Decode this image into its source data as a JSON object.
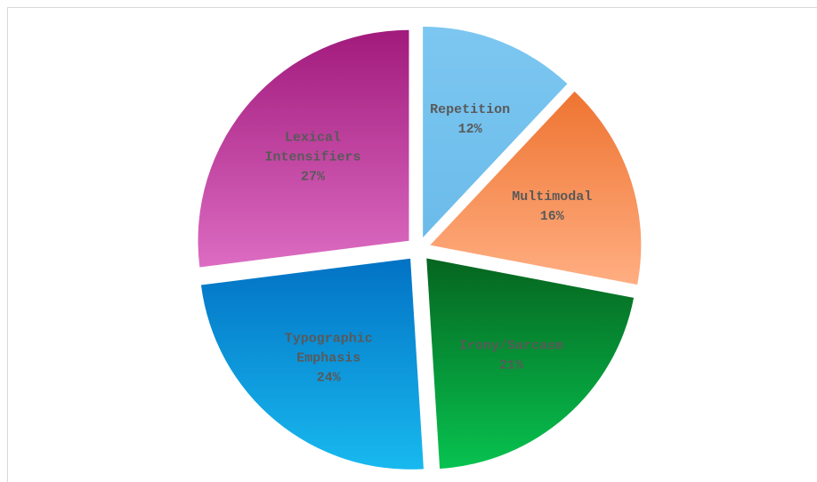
{
  "chart_data": {
    "type": "pie",
    "title": "",
    "slices": [
      {
        "name": "Repetition",
        "label_lines": [
          "Repetition"
        ],
        "value": 12,
        "value_label": "12%",
        "color_top": "#7cc7f1",
        "color_bottom": "#6bbbea"
      },
      {
        "name": "Multimodal",
        "label_lines": [
          "Multimodal"
        ],
        "value": 16,
        "value_label": "16%",
        "color_top": "#ee7431",
        "color_bottom": "#ffae82"
      },
      {
        "name": "Irony/Sarcasm",
        "label_lines": [
          "Irony/Sarcasm"
        ],
        "value": 21,
        "value_label": "21%",
        "color_top": "#06651f",
        "color_bottom": "#07c250"
      },
      {
        "name": "Typographic Emphasis",
        "label_lines": [
          "Typographic",
          "Emphasis"
        ],
        "value": 24,
        "value_label": "24%",
        "color_top": "#0272c4",
        "color_bottom": "#18b9ef"
      },
      {
        "name": "Lexical Intensifiers",
        "label_lines": [
          "Lexical",
          "Intensifiers"
        ],
        "value": 27,
        "value_label": "27%",
        "color_top": "#a11a7c",
        "color_bottom": "#dc6cc2"
      }
    ]
  }
}
